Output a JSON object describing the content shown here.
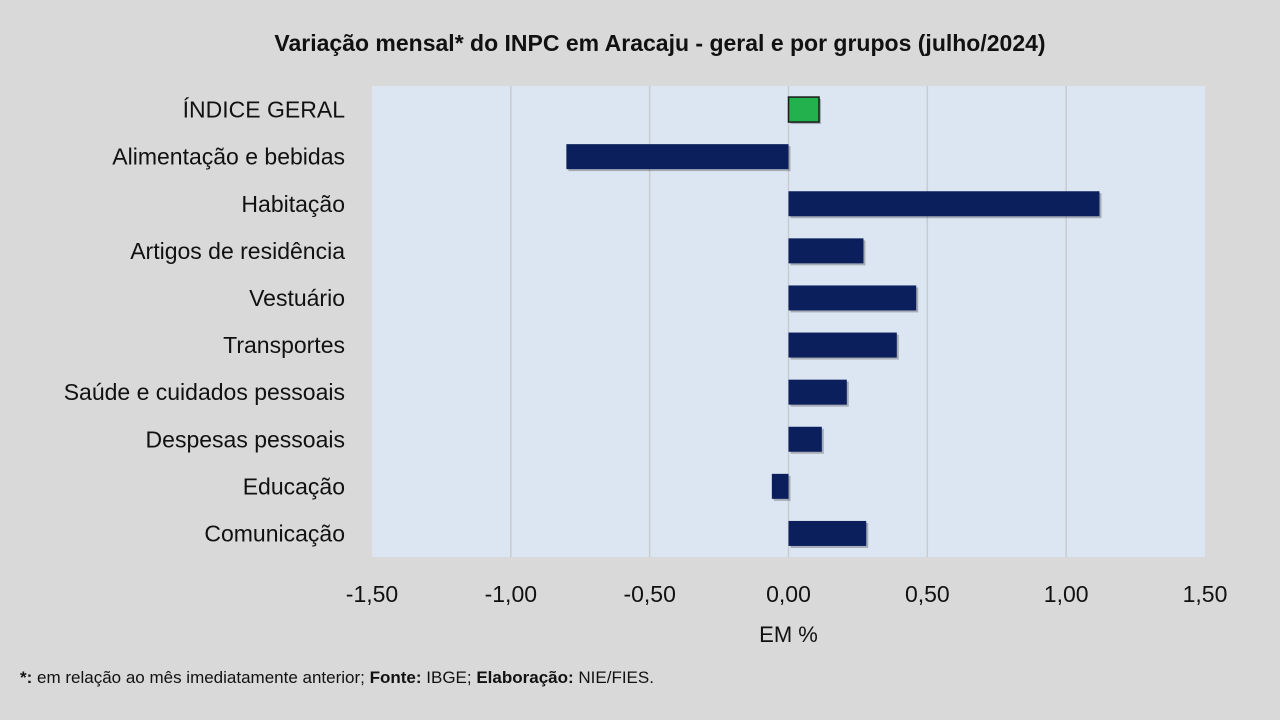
{
  "chart_data": {
    "type": "bar",
    "orientation": "horizontal",
    "title": "Variação  mensal*  do INPC em Aracaju  - geral e por grupos  (julho/2024)",
    "xlabel": "EM %",
    "ylabel": "",
    "xlim": [
      -1.5,
      1.5
    ],
    "xticks": [
      "-1,50",
      "-1,00",
      "-0,50",
      "0,00",
      "0,50",
      "1,00",
      "1,50"
    ],
    "xtick_values": [
      -1.5,
      -1.0,
      -0.5,
      0.0,
      0.5,
      1.0,
      1.5
    ],
    "grid": true,
    "categories": [
      "ÍNDICE GERAL",
      "Alimentação e bebidas",
      "Habitação",
      "Artigos de residência",
      "Vestuário",
      "Transportes",
      "Saúde e cuidados pessoais",
      "Despesas pessoais",
      "Educação",
      "Comunicação"
    ],
    "values": [
      0.11,
      -0.8,
      1.12,
      0.27,
      0.46,
      0.39,
      0.21,
      0.12,
      -0.06,
      0.28
    ],
    "bar_colors": [
      "#22b14c",
      "#0b1f5c",
      "#0b1f5c",
      "#0b1f5c",
      "#0b1f5c",
      "#0b1f5c",
      "#0b1f5c",
      "#0b1f5c",
      "#0b1f5c",
      "#0b1f5c"
    ],
    "plot_background": "#dce6f2"
  },
  "footnote": {
    "star": "*:",
    "text1": " em relação ao mês imediatamente  anterior; ",
    "fonte_label": "Fonte:",
    "fonte_value": " IBGE; ",
    "elab_label": "Elaboração:",
    "elab_value": " NIE/FIES."
  }
}
